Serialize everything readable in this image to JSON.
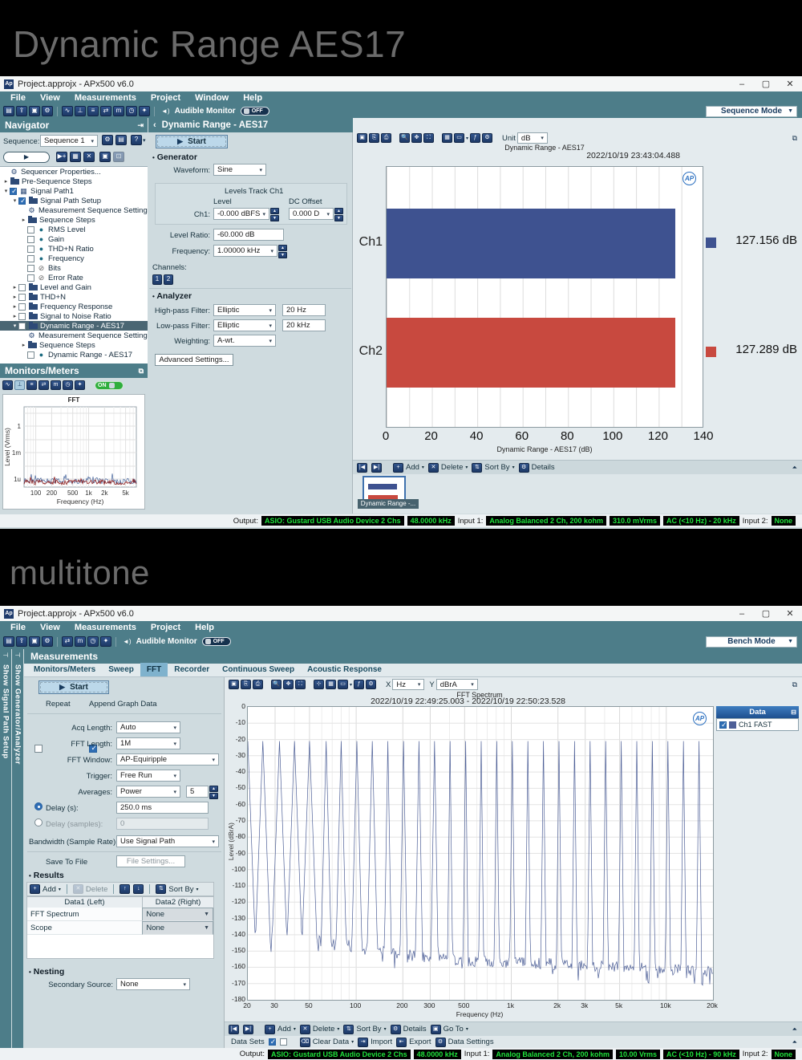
{
  "banners": {
    "top": "Dynamic Range AES17",
    "middle": "multitone"
  },
  "win1": {
    "title": "Project.approjx - APx500 v6.0",
    "menu": [
      "File",
      "View",
      "Measurements",
      "Project",
      "Window",
      "Help"
    ],
    "audible_monitor": "Audible Monitor",
    "monitor_off": "OFF",
    "mode": "Sequence Mode",
    "navigator": {
      "title": "Navigator",
      "sequence_label": "Sequence:",
      "sequence_value": "Sequence 1",
      "tree": [
        {
          "ind": 0,
          "i": "gear",
          "t": "Sequencer Properties..."
        },
        {
          "ind": 0,
          "a": "r",
          "i": "folder",
          "t": "Pre-Sequence Steps"
        },
        {
          "ind": 0,
          "a": "d",
          "c": "on",
          "i": "signal",
          "t": "Signal Path1"
        },
        {
          "ind": 1,
          "a": "d",
          "c": "on",
          "i": "folder",
          "t": "Signal Path Setup"
        },
        {
          "ind": 2,
          "i": "gear",
          "t": "Measurement Sequence Settings..."
        },
        {
          "ind": 2,
          "a": "r",
          "i": "folder",
          "t": "Sequence Steps"
        },
        {
          "ind": 2,
          "c": "off",
          "i": "dot",
          "t": "RMS Level"
        },
        {
          "ind": 2,
          "c": "off",
          "i": "dot",
          "t": "Gain"
        },
        {
          "ind": 2,
          "c": "off",
          "i": "dot",
          "t": "THD+N Ratio"
        },
        {
          "ind": 2,
          "c": "off",
          "i": "dot",
          "t": "Frequency"
        },
        {
          "ind": 2,
          "c": "off",
          "i": "slash",
          "t": "Bits"
        },
        {
          "ind": 2,
          "c": "off",
          "i": "slash",
          "t": "Error Rate"
        },
        {
          "ind": 1,
          "a": "r",
          "c": "off",
          "i": "folder",
          "t": "Level and Gain"
        },
        {
          "ind": 1,
          "a": "r",
          "c": "off",
          "i": "folder",
          "t": "THD+N"
        },
        {
          "ind": 1,
          "a": "r",
          "c": "off",
          "i": "folder",
          "t": "Frequency Response"
        },
        {
          "ind": 1,
          "a": "r",
          "c": "off",
          "i": "folder",
          "t": "Signal to Noise Ratio"
        },
        {
          "ind": 1,
          "a": "d",
          "c": "off",
          "i": "folder",
          "t": "Dynamic Range - AES17",
          "sel": true
        },
        {
          "ind": 2,
          "i": "gear",
          "t": "Measurement Sequence Settings..."
        },
        {
          "ind": 2,
          "a": "r",
          "i": "folder",
          "t": "Sequence Steps"
        },
        {
          "ind": 2,
          "c": "off",
          "i": "dot",
          "t": "Dynamic Range - AES17"
        }
      ]
    },
    "monitors": {
      "title": "Monitors/Meters",
      "on": "ON"
    },
    "measure": {
      "header": "Dynamic Range - AES17",
      "start": "Start",
      "generator_title": "Generator",
      "waveform_label": "Waveform:",
      "waveform": "Sine",
      "levels_track": "Levels Track Ch1",
      "level_header": "Level",
      "dc_header": "DC Offset",
      "ch1_label": "Ch1:",
      "ch1_level": "-0.000 dBFS",
      "dc_offset": "0.000 D",
      "level_ratio_label": "Level Ratio:",
      "level_ratio": "-60.000 dB",
      "frequency_label": "Frequency:",
      "frequency": "1.00000 kHz",
      "channels_label": "Channels:",
      "ch_btns": [
        "1",
        "2"
      ],
      "analyzer_title": "Analyzer",
      "hp_label": "High-pass Filter:",
      "hp_value": "Elliptic",
      "hp_freq": "20 Hz",
      "lp_label": "Low-pass Filter:",
      "lp_value": "Elliptic",
      "lp_freq": "20 kHz",
      "weighting_label": "Weighting:",
      "weighting": "A-wt.",
      "advanced": "Advanced Settings..."
    },
    "graph": {
      "unit_label": "Unit",
      "unit": "dB",
      "add": "Add",
      "del": "Delete",
      "sort": "Sort By",
      "details": "Details",
      "thumb_caption": "Dynamic Range -..."
    },
    "status": {
      "output_label": "Output:",
      "device": "ASIO: Gustard USB Audio Device 2 Chs",
      "rate": "48.0000 kHz",
      "input1_label": "Input 1:",
      "input1": "Analog Balanced 2 Ch, 200 kohm",
      "range": "310.0 mVrms",
      "bw": "AC (<10 Hz) - 20 kHz",
      "input2_label": "Input 2:",
      "input2": "None"
    }
  },
  "win2": {
    "title": "Project.approjx - APx500 v6.0",
    "menu": [
      "File",
      "View",
      "Measurements",
      "Project",
      "Help"
    ],
    "audible_monitor": "Audible Monitor",
    "monitor_off": "OFF",
    "mode": "Bench Mode",
    "side_tabs": [
      "Show Signal Path Setup",
      "Show Generator/Analyzer"
    ],
    "header": "Measurements",
    "tabs": [
      "Monitors/Meters",
      "Sweep",
      "FFT",
      "Recorder",
      "Continuous Sweep",
      "Acoustic Response"
    ],
    "selected_tab": 2,
    "panel": {
      "start": "Start",
      "repeat": "Repeat",
      "append": "Append Graph Data",
      "acq_label": "Acq Length:",
      "acq": "Auto",
      "fftlen_label": "FFT Length:",
      "fftlen": "1M",
      "fftwin_label": "FFT Window:",
      "fftwin": "AP-Equiripple",
      "trigger_label": "Trigger:",
      "trigger": "Free Run",
      "avg_label": "Averages:",
      "avg": "Power",
      "avg_count": "5",
      "delay_s_label": "Delay (s):",
      "delay_s": "250.0 ms",
      "delay_samples_label": "Delay (samples):",
      "delay_samples": "0",
      "bw_label": "Bandwidth (Sample Rate):",
      "bw": "Use Signal Path",
      "save_to_file": "Save To File",
      "file_settings": "File Settings...",
      "results_title": "Results",
      "add": "Add",
      "del": "Delete",
      "sort": "Sort By",
      "results_cols": [
        "Data1 (Left)",
        "Data2 (Right)"
      ],
      "results_rows": [
        [
          "FFT Spectrum",
          "None"
        ],
        [
          "Scope",
          "None"
        ]
      ],
      "nesting_title": "Nesting",
      "secondary_label": "Secondary Source:",
      "secondary": "None"
    },
    "graph": {
      "x_label": "X",
      "x_unit": "Hz",
      "y_label": "Y",
      "y_unit": "dBrA"
    },
    "bottom": {
      "add": "Add",
      "del": "Delete",
      "sort": "Sort By",
      "details": "Details",
      "goto": "Go To"
    },
    "datasets": {
      "label": "Data Sets",
      "clear": "Clear Data",
      "import": "Import",
      "export": "Export",
      "settings": "Data Settings"
    },
    "status": {
      "output_label": "Output:",
      "device": "ASIO: Gustard USB Audio Device 2 Chs",
      "rate": "48.0000 kHz",
      "input1_label": "Input 1:",
      "input1": "Analog Balanced 2 Ch, 200 kohm",
      "range": "10.00 Vrms",
      "bw": "AC (<10 Hz) - 90 kHz",
      "input2_label": "Input 2:",
      "input2": "None"
    }
  },
  "chart_data": [
    {
      "id": "dynamic-range-bar",
      "type": "bar",
      "orientation": "horizontal",
      "title": "Dynamic Range - AES17",
      "timestamp": "2022/10/19 23:43:04.488",
      "categories": [
        "Ch1",
        "Ch2"
      ],
      "values": [
        127.156,
        127.289
      ],
      "value_labels": [
        "127.156 dB",
        "127.289 dB"
      ],
      "colors": [
        "#3E5290",
        "#C8493F"
      ],
      "xlabel": "Dynamic Range - AES17 (dB)",
      "xlim": [
        0,
        140
      ],
      "xticks": [
        0,
        20,
        40,
        60,
        80,
        100,
        120,
        140
      ],
      "grid": true,
      "unit": "dB"
    },
    {
      "id": "fft-spectrum",
      "type": "line",
      "title": "FFT Spectrum",
      "timestamp": "2022/10/19 22:49:25.003 - 2022/10/19 22:50:23.528",
      "xlabel": "Frequency (Hz)",
      "ylabel": "Level (dBrA)",
      "xscale": "log",
      "xlim": [
        20,
        20000
      ],
      "ylim": [
        -180,
        0
      ],
      "ytick_step": 10,
      "xticks": [
        20,
        30,
        50,
        100,
        200,
        300,
        500,
        1000,
        2000,
        3000,
        5000,
        10000,
        20000
      ],
      "xtick_labels": [
        "20",
        "30",
        "50",
        "100",
        "200",
        "300",
        "500",
        "1k",
        "2k",
        "3k",
        "5k",
        "10k",
        "20k"
      ],
      "legend": {
        "title": "Data",
        "entries": [
          "Ch1 FAST"
        ]
      },
      "series": [
        {
          "name": "Ch1 FAST",
          "color": "#4D5F97",
          "tone_level_dbra": -21,
          "tone_freqs_hz": [
            20,
            25,
            32,
            40,
            50,
            64,
            80,
            101,
            127,
            160,
            202,
            254,
            320,
            403,
            508,
            640,
            806,
            1016,
            1280,
            1613,
            2032,
            2560,
            3225,
            4064,
            5120,
            6451,
            8128,
            10240,
            12902,
            16255
          ],
          "noise_floor_dbra": [
            [
              20,
              -142
            ],
            [
              50,
              -143
            ],
            [
              100,
              -147
            ],
            [
              200,
              -152
            ],
            [
              500,
              -156
            ],
            [
              1000,
              -157
            ],
            [
              2000,
              -158
            ],
            [
              5000,
              -160
            ],
            [
              10000,
              -161
            ],
            [
              20000,
              -163
            ]
          ]
        }
      ]
    },
    {
      "id": "monitor-fft",
      "type": "line",
      "title": "FFT",
      "xlabel": "Frequency (Hz)",
      "ylabel": "Level (Vrms)",
      "xscale": "log",
      "xlim": [
        60,
        8000
      ],
      "xticks": [
        100,
        200,
        500,
        1000,
        2000,
        5000
      ],
      "xtick_labels": [
        "100",
        "200",
        "500",
        "1k",
        "2k",
        "5k"
      ],
      "ytick_labels": [
        "1",
        "1m",
        "1u"
      ],
      "series_colors": [
        "#2c4f8f",
        "#8b1a1a"
      ]
    }
  ]
}
